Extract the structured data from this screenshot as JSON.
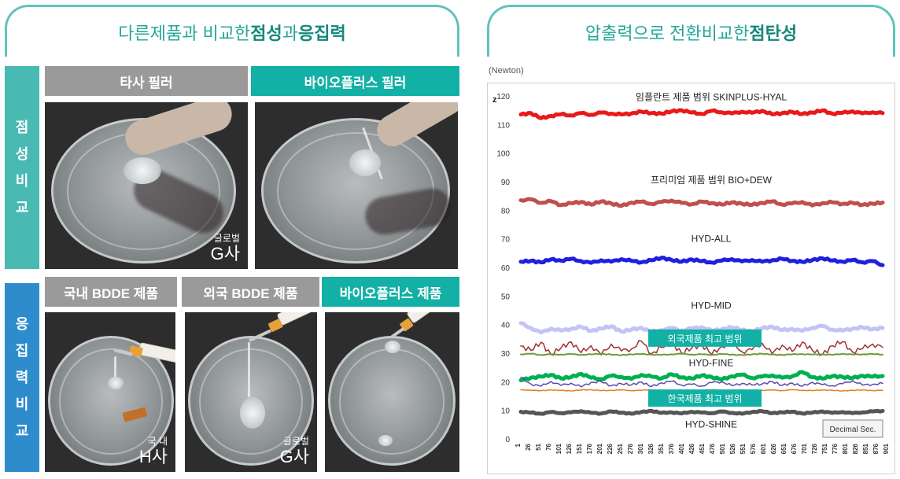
{
  "left_header": {
    "prefix": "다른제품과 비교한 ",
    "bold1": "점성",
    "mid": "과 ",
    "bold2": "응집력"
  },
  "right_header": {
    "prefix": "압출력으로 전환비교한 ",
    "bold": "점탄성"
  },
  "side": {
    "viscosity": [
      "점",
      "성",
      "비",
      "교"
    ],
    "cohesion": [
      "응",
      "집",
      "력",
      "비",
      "교"
    ]
  },
  "columns": {
    "other_filler": "타사 필러",
    "bioplus_filler": "바이오플러스 필러",
    "domestic_bdde": "국내 BDDE 제품",
    "foreign_bdde": "외국 BDDE 제품",
    "bioplus_product": "바이오플러스 제품"
  },
  "captions": {
    "photo1_small": "글로벌",
    "photo1_big": "G사",
    "photo4_small": "국 내",
    "photo4_big": "H사",
    "photo5_small": "글로벌",
    "photo5_big": "G사"
  },
  "colors": {
    "teal": "#12b0a5",
    "gray": "#9a9a9a",
    "blue_side": "#2e8ccd"
  },
  "chart_data": {
    "type": "line",
    "unit_label": "(Newton)",
    "y_axis_letter": "z",
    "x_label": "Decimal Sec.",
    "ylim": [
      0,
      120
    ],
    "yticks": [
      0,
      10,
      20,
      30,
      40,
      50,
      60,
      70,
      80,
      90,
      100,
      110,
      120
    ],
    "xticks": [
      "1",
      "26",
      "51",
      "76",
      "101",
      "126",
      "151",
      "176",
      "201",
      "226",
      "251",
      "276",
      "301",
      "326",
      "351",
      "376",
      "401",
      "426",
      "451",
      "476",
      "501",
      "526",
      "551",
      "576",
      "601",
      "626",
      "651",
      "676",
      "701",
      "726",
      "751",
      "776",
      "801",
      "826",
      "851",
      "876",
      "901"
    ],
    "series_labels": [
      {
        "text": "임플란트 제품 범위 SKINPLUS-HYAL",
        "y": 118.5
      },
      {
        "text": "프리미엄 제품 범위 BIO+DEW",
        "y": 89.5
      },
      {
        "text": "HYD-ALL",
        "y": 69
      },
      {
        "text": "HYD-MID",
        "y": 45.5
      },
      {
        "text": "HYD-FINE",
        "y": 25.5
      },
      {
        "text": "HYD-SHINE",
        "y": 4
      }
    ],
    "badges": [
      {
        "text": "외국제품 최고 범위",
        "y": 35
      },
      {
        "text": "한국제품 최고 범위",
        "y": 14
      }
    ],
    "series": [
      {
        "color": "#e8191c",
        "width": 5,
        "base": 113.8,
        "amp": 0.9,
        "values": [
          113.5,
          114.0,
          112.2,
          113.0,
          113.6,
          113.2,
          114.0,
          113.4,
          114.2,
          113.8,
          113.5,
          113.9,
          114.5,
          114.0,
          113.8,
          114.6,
          115.0,
          114.2,
          113.7,
          114.8,
          114.3,
          113.9,
          114.5,
          114.1,
          114.8,
          113.6,
          114.0,
          114.4,
          113.7,
          114.2,
          114.9,
          113.8,
          114.1,
          114.6,
          113.9,
          114.3,
          114.0
        ]
      },
      {
        "color": "#c0504d",
        "width": 5,
        "base": 82.5,
        "amp": 0.9,
        "values": [
          83.5,
          83.8,
          82.6,
          83.2,
          81.8,
          82.5,
          82.9,
          82.0,
          83.1,
          82.4,
          81.5,
          82.7,
          83.0,
          82.2,
          82.9,
          83.4,
          82.6,
          82.1,
          83.0,
          82.5,
          82.0,
          82.8,
          82.3,
          81.9,
          82.6,
          83.1,
          82.0,
          82.4,
          82.9,
          81.7,
          82.5,
          82.8,
          82.2,
          82.6,
          81.9,
          82.3,
          82.7
        ]
      },
      {
        "color": "#1f1fe0",
        "width": 5,
        "base": 62.2,
        "amp": 0.9,
        "values": [
          62.0,
          62.3,
          61.8,
          62.8,
          62.4,
          63.0,
          62.2,
          61.6,
          62.5,
          62.0,
          62.9,
          62.3,
          61.8,
          62.5,
          63.4,
          62.6,
          62.0,
          62.8,
          62.2,
          61.7,
          62.4,
          62.9,
          62.1,
          62.6,
          62.0,
          62.5,
          63.0,
          62.3,
          61.9,
          62.6,
          63.2,
          62.4,
          62.0,
          62.6,
          61.8,
          62.2,
          60.8
        ]
      },
      {
        "color": "#c3c3f5",
        "width": 5,
        "base": 38.4,
        "amp": 1.0,
        "values": [
          40.5,
          38.8,
          37.2,
          38.6,
          37.9,
          38.5,
          39.2,
          37.8,
          38.6,
          39.4,
          37.6,
          38.2,
          38.9,
          37.4,
          38.1,
          38.8,
          37.9,
          38.6,
          39.1,
          37.8,
          38.4,
          39.0,
          38.2,
          37.5,
          38.7,
          39.3,
          38.0,
          38.5,
          37.8,
          38.9,
          39.5,
          38.2,
          37.9,
          38.6,
          39.0,
          38.4,
          38.8
        ]
      },
      {
        "color": "#a03030",
        "width": 1.5,
        "base": 31.5,
        "amp": 2.6,
        "values": [
          32.5,
          31.0,
          33.8,
          29.5,
          31.8,
          34.0,
          30.2,
          32.6,
          29.4,
          33.2,
          30.8,
          31.5,
          34.2,
          29.8,
          32.0,
          33.6,
          30.0,
          31.8,
          33.0,
          29.6,
          32.4,
          34.1,
          30.5,
          31.2,
          33.5,
          29.8,
          32.8,
          30.6,
          33.9,
          31.0,
          29.5,
          32.6,
          34.0,
          30.4,
          31.6,
          33.2,
          32.0
        ]
      },
      {
        "color": "#6b9a3a",
        "width": 2,
        "base": 29.5,
        "amp": 0.4,
        "values": [
          29.6,
          29.8,
          29.4,
          29.6,
          29.5,
          29.7,
          29.4,
          29.6,
          29.8,
          29.5,
          29.3,
          29.6,
          29.7,
          29.5,
          29.4,
          29.6,
          29.8,
          29.5,
          29.6,
          29.4,
          29.7,
          29.5,
          29.3,
          29.6,
          29.8,
          29.5,
          29.4,
          29.6,
          29.7,
          29.5,
          29.6,
          29.4,
          29.8,
          29.5,
          29.6,
          29.7,
          29.5
        ]
      },
      {
        "color": "#00b050",
        "width": 5,
        "base": 21.5,
        "amp": 0.9,
        "values": [
          20.5,
          21.4,
          21.8,
          22.4,
          21.2,
          21.6,
          22.8,
          21.4,
          20.9,
          22.1,
          21.7,
          21.0,
          22.4,
          21.8,
          21.2,
          22.6,
          21.5,
          21.1,
          22.2,
          21.6,
          20.8,
          21.9,
          22.5,
          21.3,
          21.8,
          22.2,
          21.4,
          21.9,
          23.4,
          21.6,
          21.1,
          22.0,
          21.7,
          21.3,
          22.1,
          21.8,
          22.0
        ]
      },
      {
        "color": "#5a4aa8",
        "width": 1.5,
        "base": 19.0,
        "amp": 1.2,
        "values": [
          21.5,
          19.2,
          18.4,
          20.1,
          18.7,
          19.5,
          18.2,
          19.8,
          20.0,
          18.6,
          19.3,
          18.9,
          19.9,
          18.3,
          19.6,
          20.2,
          18.8,
          19.1,
          18.5,
          19.7,
          20.0,
          18.6,
          19.4,
          18.9,
          19.2,
          20.1,
          18.7,
          19.5,
          18.4,
          19.8,
          19.0,
          18.6,
          19.3,
          20.4,
          18.8,
          19.1,
          19.4
        ]
      },
      {
        "color": "#e67e22",
        "width": 1.5,
        "base": 17.0,
        "amp": 0.3,
        "values": [
          17.2,
          17.0,
          16.9,
          17.1,
          17.0,
          16.8,
          17.1,
          17.2,
          16.9,
          17.0,
          17.1,
          16.9,
          17.0,
          17.2,
          16.8,
          17.0,
          17.1,
          16.9,
          17.0,
          17.2,
          16.9,
          17.0,
          17.1,
          16.8,
          17.0,
          17.1,
          16.9,
          17.2,
          17.0,
          16.9,
          17.1,
          17.0,
          16.8,
          17.0,
          17.1,
          16.9,
          17.0
        ]
      },
      {
        "color": "#555555",
        "width": 5,
        "base": 9.3,
        "amp": 0.5,
        "values": [
          9.5,
          9.2,
          8.8,
          9.4,
          9.0,
          9.3,
          9.7,
          9.1,
          8.9,
          9.6,
          9.2,
          8.8,
          9.4,
          9.8,
          9.1,
          9.3,
          8.9,
          9.5,
          9.2,
          9.0,
          9.6,
          9.1,
          8.8,
          9.4,
          9.7,
          9.0,
          9.3,
          9.5,
          8.9,
          9.2,
          9.6,
          9.1,
          9.4,
          9.0,
          9.3,
          9.6,
          9.8
        ]
      }
    ]
  }
}
